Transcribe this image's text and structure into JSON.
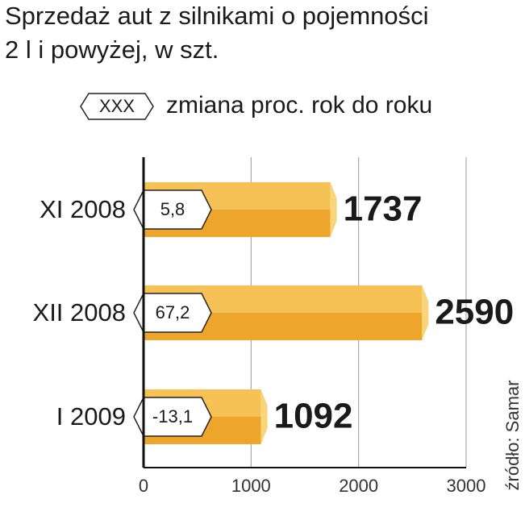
{
  "chart_data": {
    "type": "bar",
    "orientation": "horizontal",
    "title": [
      "Sprzedaż aut z silnikami o pojemności",
      "2 l i powyżej, w szt."
    ],
    "legend": {
      "symbol": "XXX",
      "label": "zmiana proc. rok do roku"
    },
    "categories": [
      "XI 2008",
      "XII 2008",
      "I 2009"
    ],
    "values": [
      1737,
      2590,
      1092
    ],
    "changes": [
      "5,8",
      "67,2",
      "-13,1"
    ],
    "color": "#eea52b",
    "xlim": [
      0,
      3000
    ],
    "xticks": [
      0,
      1000,
      2000,
      3000
    ],
    "grid": true,
    "source": "źródło: Samar"
  }
}
